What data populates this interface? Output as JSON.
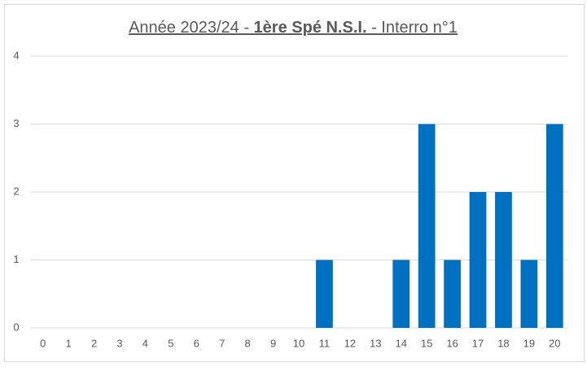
{
  "chart_data": {
    "type": "bar",
    "title": {
      "parts": [
        "Année 2023/24 - ",
        "1ère Spé N.S.I.",
        " - Interro n°1"
      ],
      "bold_part": 1
    },
    "categories": [
      "0",
      "1",
      "2",
      "3",
      "4",
      "5",
      "6",
      "7",
      "8",
      "9",
      "10",
      "11",
      "12",
      "13",
      "14",
      "15",
      "16",
      "17",
      "18",
      "19",
      "20"
    ],
    "values": [
      0,
      0,
      0,
      0,
      0,
      0,
      0,
      0,
      0,
      0,
      0,
      1,
      0,
      0,
      1,
      3,
      1,
      2,
      2,
      1,
      3
    ],
    "color": "#0070c0",
    "ylim": [
      0,
      4
    ],
    "yticks": [
      0,
      1,
      2,
      3,
      4
    ],
    "grid": true
  }
}
